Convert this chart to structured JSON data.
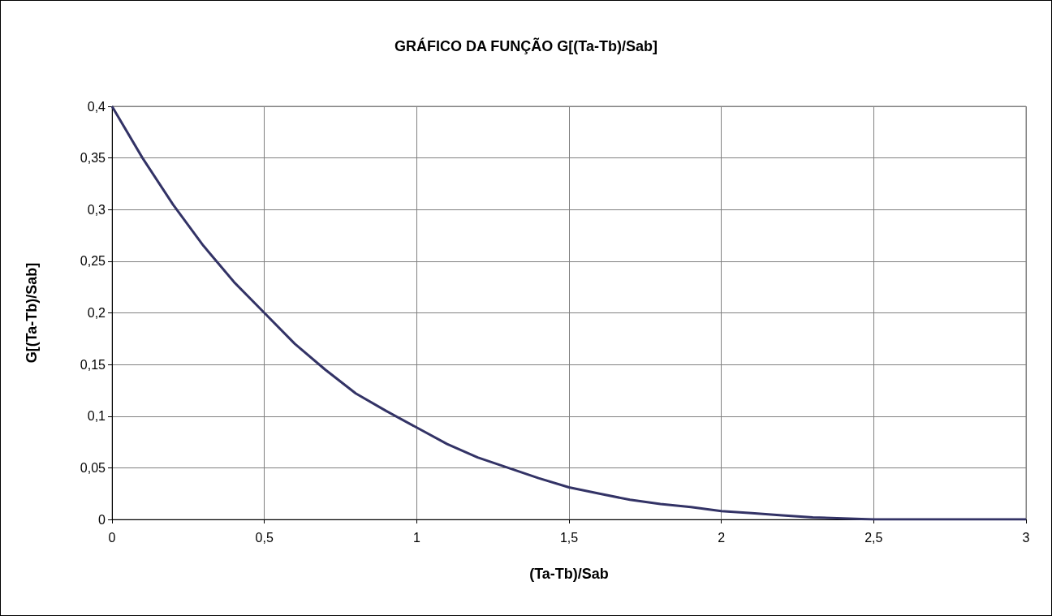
{
  "chart_data": {
    "type": "line",
    "title": "GRÁFICO DA FUNÇÃO G[(Ta-Tb)/Sab]",
    "xlabel": "(Ta-Tb)/Sab",
    "ylabel": "G[(Ta-Tb)/Sab]",
    "x": [
      0,
      0.1,
      0.2,
      0.3,
      0.4,
      0.5,
      0.6,
      0.7,
      0.8,
      0.9,
      1,
      1.1,
      1.2,
      1.3,
      1.4,
      1.5,
      1.6,
      1.7,
      1.8,
      1.9,
      2,
      2.1,
      2.2,
      2.3,
      2.4,
      2.5,
      2.6,
      2.7,
      2.8,
      2.9,
      3
    ],
    "series": [
      {
        "color": "#333366",
        "values": [
          0.4,
          0.35,
          0.305,
          0.265,
          0.23,
          0.2,
          0.17,
          0.145,
          0.122,
          0.105,
          0.089,
          0.073,
          0.06,
          0.05,
          0.04,
          0.031,
          0.025,
          0.019,
          0.015,
          0.012,
          0.008,
          0.006,
          0.004,
          0.002,
          0.001,
          0,
          0,
          0,
          0,
          0,
          0
        ]
      }
    ],
    "xlim": [
      0,
      3
    ],
    "xticks": [
      {
        "value": 0,
        "label": "0"
      },
      {
        "value": 0.5,
        "label": "0,5"
      },
      {
        "value": 1,
        "label": "1"
      },
      {
        "value": 1.5,
        "label": "1,5"
      },
      {
        "value": 2,
        "label": "2"
      },
      {
        "value": 2.5,
        "label": "2,5"
      },
      {
        "value": 3,
        "label": "3"
      }
    ],
    "ylim": [
      0,
      0.4
    ],
    "yticks": [
      {
        "value": 0,
        "label": "0"
      },
      {
        "value": 0.05,
        "label": "0,05"
      },
      {
        "value": 0.1,
        "label": "0,1"
      },
      {
        "value": 0.15,
        "label": "0,15"
      },
      {
        "value": 0.2,
        "label": "0,2"
      },
      {
        "value": 0.25,
        "label": "0,25"
      },
      {
        "value": 0.3,
        "label": "0,3"
      },
      {
        "value": 0.35,
        "label": "0,35"
      },
      {
        "value": 0.4,
        "label": "0,4"
      }
    ],
    "grid": true,
    "marker": "none",
    "line_style": "solid"
  }
}
